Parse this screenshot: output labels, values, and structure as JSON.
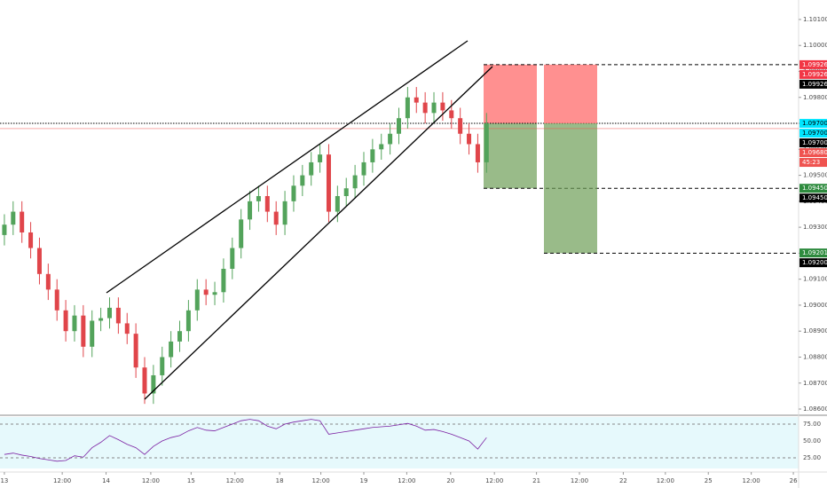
{
  "chart_data": {
    "type": "candlestick",
    "open": [
      1.0927,
      1.0931,
      1.0936,
      1.0928,
      1.0922,
      1.0912,
      1.0906,
      1.0898,
      1.089,
      1.0896,
      1.0884,
      1.0894,
      1.0895,
      1.0899,
      1.0893,
      1.0889,
      1.0876,
      1.0866,
      1.0873,
      1.088,
      1.0886,
      1.089,
      1.0898,
      1.0906,
      1.0904,
      1.0905,
      1.0914,
      1.0922,
      1.0933,
      1.094,
      1.0942,
      1.0936,
      1.0931,
      1.094,
      1.0946,
      1.095,
      1.0955,
      1.0958,
      1.0936,
      1.0942,
      1.0945,
      1.095,
      1.0955,
      1.096,
      1.0962,
      1.0966,
      1.0972,
      1.098,
      1.0978,
      1.0974,
      1.0978,
      1.0975,
      1.0972,
      1.0966,
      1.0962,
      1.0955
    ],
    "high": [
      1.0935,
      1.094,
      1.094,
      1.0932,
      1.0926,
      1.0916,
      1.091,
      1.0902,
      1.09,
      1.09,
      1.0898,
      1.0899,
      1.0903,
      1.0903,
      1.0897,
      1.0893,
      1.088,
      1.0877,
      1.0884,
      1.089,
      1.0894,
      1.0902,
      1.091,
      1.091,
      1.0909,
      1.0918,
      1.0926,
      1.0937,
      1.0944,
      1.0946,
      1.0946,
      1.094,
      1.0944,
      1.095,
      1.0954,
      1.0959,
      1.0962,
      1.0962,
      1.0946,
      1.0949,
      1.0954,
      1.0959,
      1.0964,
      1.0966,
      1.097,
      1.0976,
      1.0984,
      1.0984,
      1.0982,
      1.0982,
      1.0982,
      1.0979,
      1.0976,
      1.097,
      1.0966,
      1.0974
    ],
    "low": [
      1.0923,
      1.0927,
      1.0924,
      1.0918,
      1.0908,
      1.0902,
      1.0894,
      1.0886,
      1.0886,
      1.088,
      1.088,
      1.089,
      1.0891,
      1.0889,
      1.0885,
      1.0872,
      1.0862,
      1.0862,
      1.0869,
      1.0876,
      1.0882,
      1.0886,
      1.0894,
      1.09,
      1.09,
      1.0901,
      1.091,
      1.0918,
      1.0929,
      1.0936,
      1.0932,
      1.0927,
      1.0927,
      1.0936,
      1.0942,
      1.0946,
      1.0951,
      1.0932,
      1.0932,
      1.0938,
      1.0941,
      1.0946,
      1.0951,
      1.0956,
      1.0958,
      1.0962,
      1.0968,
      1.0974,
      1.097,
      1.097,
      1.0971,
      1.0968,
      1.0962,
      1.0958,
      1.0951,
      1.0951
    ],
    "close": [
      1.0931,
      1.0936,
      1.0928,
      1.0922,
      1.0912,
      1.0906,
      1.0898,
      1.089,
      1.0896,
      1.0884,
      1.0894,
      1.0895,
      1.0899,
      1.0893,
      1.0889,
      1.0876,
      1.0866,
      1.0873,
      1.088,
      1.0886,
      1.089,
      1.0898,
      1.0906,
      1.0904,
      1.0905,
      1.0914,
      1.0922,
      1.0933,
      1.094,
      1.0942,
      1.0936,
      1.0931,
      1.094,
      1.0946,
      1.095,
      1.0955,
      1.0958,
      1.0936,
      1.0942,
      1.0945,
      1.095,
      1.0955,
      1.096,
      1.0962,
      1.0966,
      1.0972,
      1.098,
      1.0978,
      1.0974,
      1.0978,
      1.0975,
      1.0972,
      1.0966,
      1.0962,
      1.0955,
      1.097
    ],
    "up_color": "#53a35b",
    "down_color": "#e0454a",
    "xlim": [
      -0.5,
      90.6
    ],
    "xticks": [
      {
        "value": 0,
        "label": "13"
      },
      {
        "value": 6.6,
        "label": "12:00"
      },
      {
        "value": 11.6,
        "label": "14"
      },
      {
        "value": 16.7,
        "label": "12:00"
      },
      {
        "value": 21.3,
        "label": "15"
      },
      {
        "value": 26.3,
        "label": "12:00"
      },
      {
        "value": 31.4,
        "label": "18"
      },
      {
        "value": 36.1,
        "label": "12:00"
      },
      {
        "value": 41,
        "label": "19"
      },
      {
        "value": 45.9,
        "label": "12:00"
      },
      {
        "value": 50.9,
        "label": "20"
      },
      {
        "value": 55.9,
        "label": "12:00"
      },
      {
        "value": 60.7,
        "label": "21"
      },
      {
        "value": 65.6,
        "label": "12:00"
      },
      {
        "value": 70.6,
        "label": "22"
      },
      {
        "value": 75.4,
        "label": "12:00"
      },
      {
        "value": 80.3,
        "label": "25"
      },
      {
        "value": 85.2,
        "label": "12:00"
      },
      {
        "value": 90,
        "label": "26"
      }
    ],
    "ylim": [
      1.08583,
      1.10175
    ],
    "yticks": [
      {
        "value": 1.101,
        "label": "1.10100"
      },
      {
        "value": 1.1,
        "label": "1.10000"
      },
      {
        "value": 1.099,
        "label": "1.09900"
      },
      {
        "value": 1.098,
        "label": "1.09800"
      },
      {
        "value": 1.097,
        "label": "1.09700"
      },
      {
        "value": 1.096,
        "label": "1.09600"
      },
      {
        "value": 1.095,
        "label": "1.09500"
      },
      {
        "value": 1.094,
        "label": "1.09400"
      },
      {
        "value": 1.093,
        "label": "1.09300"
      },
      {
        "value": 1.092,
        "label": "1.09200"
      },
      {
        "value": 1.091,
        "label": "1.09100"
      },
      {
        "value": 1.09,
        "label": "1.09000"
      },
      {
        "value": 1.089,
        "label": "1.08900"
      },
      {
        "value": 1.088,
        "label": "1.08800"
      },
      {
        "value": 1.087,
        "label": "1.08700"
      },
      {
        "value": 1.086,
        "label": "1.08600"
      }
    ],
    "tags": [
      {
        "value": 1.09926,
        "label": "1.09926",
        "color": "#f23645"
      },
      {
        "value": 1.09926,
        "label": "1.09926",
        "color": "#f23645"
      },
      {
        "value": 1.09926,
        "label": "1.09926",
        "color": "#000000"
      },
      {
        "value": 1.097,
        "label": "1.09700",
        "color": "#00e5ff"
      },
      {
        "value": 1.097,
        "label": "1.09700",
        "color": "#00e5ff"
      },
      {
        "value": 1.097,
        "label": "1.09700",
        "color": "#000000"
      },
      {
        "value": 1.0968,
        "label": "1.09680",
        "color": "#ef5350"
      },
      {
        "label": "45:23",
        "color": "#ef5350"
      },
      {
        "value": 1.0945,
        "label": "1.09450",
        "color": "#2e8b3e"
      },
      {
        "value": 1.0945,
        "label": "1.09450",
        "color": "#000000"
      },
      {
        "value": 1.09201,
        "label": "1.09201",
        "color": "#2e8b3e"
      },
      {
        "value": 1.092,
        "label": "1.09200",
        "color": "#000000"
      }
    ],
    "positions": [
      {
        "stop": 1.09926,
        "entry": 1.097,
        "target": 1.0945
      },
      {
        "stop": 1.09926,
        "entry": 1.097,
        "target": 1.092
      }
    ],
    "rsi": {
      "values": [
        30,
        32,
        29,
        27,
        24,
        22,
        20,
        21,
        28,
        26,
        40,
        48,
        58,
        52,
        45,
        40,
        30,
        42,
        50,
        55,
        58,
        65,
        70,
        66,
        65,
        70,
        75,
        80,
        82,
        80,
        72,
        68,
        75,
        78,
        80,
        82,
        80,
        60,
        62,
        64,
        66,
        68,
        70,
        71,
        72,
        74,
        76,
        72,
        66,
        67,
        64,
        60,
        55,
        50,
        38,
        55
      ],
      "color": "#7b1fa2",
      "ylim": [
        9.2,
        85.5
      ],
      "yticks": [
        {
          "value": 75,
          "label": "75.00"
        },
        {
          "value": 50,
          "label": "50.00"
        },
        {
          "value": 25,
          "label": "25.00"
        }
      ]
    }
  }
}
